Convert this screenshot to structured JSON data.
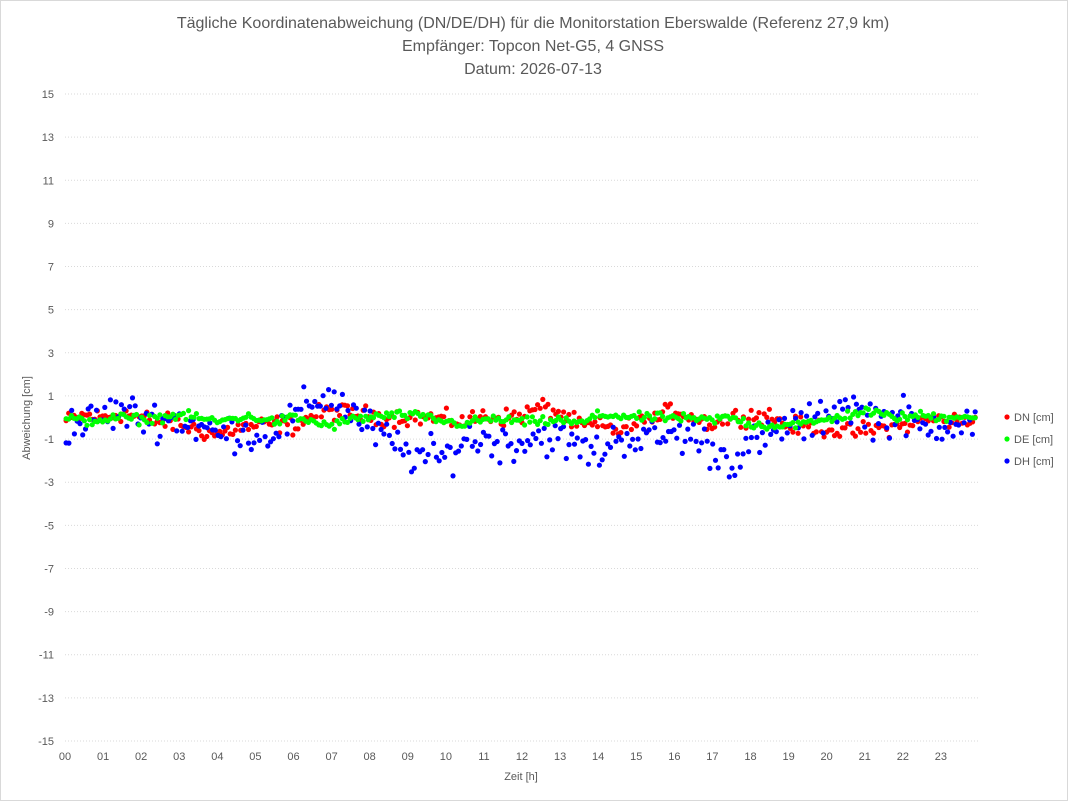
{
  "chart_data": {
    "type": "scatter",
    "title": [
      "Tägliche Koordinatenabweichung (DN/DE/DH) für die Monitorstation Eberswalde (Referenz 27,9 km)",
      "Empfänger: Topcon Net-G5, 4 GNSS",
      "Datum: 2026-07-13"
    ],
    "xlabel": "Zeit [h]",
    "ylabel": "Abweichung [cm]",
    "xlim": [
      0,
      24
    ],
    "ylim": [
      -15,
      15
    ],
    "x_ticks": [
      "00",
      "01",
      "02",
      "03",
      "04",
      "05",
      "06",
      "07",
      "08",
      "09",
      "10",
      "11",
      "12",
      "13",
      "14",
      "15",
      "16",
      "17",
      "18",
      "19",
      "20",
      "21",
      "22",
      "23"
    ],
    "y_ticks": [
      15,
      13,
      11,
      9,
      7,
      5,
      3,
      1,
      -1,
      -3,
      -5,
      -7,
      -9,
      -11,
      -13,
      -15
    ],
    "y_tick_labels": [
      "15",
      "13",
      "11",
      "9",
      "7",
      "5",
      "3",
      "1",
      "-1",
      "-3",
      "-5",
      "-7",
      "-9",
      "-11",
      "-13",
      "-15"
    ],
    "grid": "horizontal-dotted",
    "legend_position": "right",
    "colors": {
      "DN": "#ff0000",
      "DE": "#00ff00",
      "DH": "#0000ff",
      "grid": "#d9d9d9",
      "text": "#595959"
    },
    "series": [
      {
        "name": "DN [cm]",
        "color": "#ff0000",
        "knots": [
          [
            0.0,
            -0.2
          ],
          [
            0.5,
            0.1
          ],
          [
            1.0,
            0.0
          ],
          [
            1.5,
            0.2
          ],
          [
            2.0,
            0.0
          ],
          [
            2.5,
            -0.2
          ],
          [
            3.0,
            -0.3
          ],
          [
            3.5,
            -0.6
          ],
          [
            4.0,
            -0.8
          ],
          [
            4.5,
            -0.5
          ],
          [
            5.0,
            -0.4
          ],
          [
            5.5,
            -0.3
          ],
          [
            6.0,
            -0.4
          ],
          [
            6.5,
            0.1
          ],
          [
            7.0,
            0.3
          ],
          [
            7.5,
            0.2
          ],
          [
            8.0,
            0.1
          ],
          [
            8.5,
            0.0
          ],
          [
            9.0,
            0.0
          ],
          [
            9.5,
            0.0
          ],
          [
            10.0,
            -0.1
          ],
          [
            10.5,
            -0.2
          ],
          [
            11.0,
            0.1
          ],
          [
            11.5,
            0.0
          ],
          [
            12.0,
            0.1
          ],
          [
            12.5,
            0.5
          ],
          [
            13.0,
            0.2
          ],
          [
            13.5,
            -0.4
          ],
          [
            14.0,
            -0.4
          ],
          [
            14.5,
            -0.6
          ],
          [
            15.0,
            -0.3
          ],
          [
            15.5,
            -0.1
          ],
          [
            16.0,
            0.4
          ],
          [
            16.5,
            0.0
          ],
          [
            17.0,
            -0.3
          ],
          [
            17.5,
            0.0
          ],
          [
            18.0,
            0.1
          ],
          [
            18.5,
            0.1
          ],
          [
            19.0,
            -0.4
          ],
          [
            19.5,
            -0.4
          ],
          [
            20.0,
            -0.5
          ],
          [
            20.5,
            -0.7
          ],
          [
            21.0,
            -0.6
          ],
          [
            21.5,
            -0.5
          ],
          [
            22.0,
            -0.4
          ],
          [
            22.5,
            -0.1
          ],
          [
            23.0,
            -0.1
          ],
          [
            23.5,
            -0.2
          ],
          [
            23.9,
            -0.1
          ]
        ]
      },
      {
        "name": "DE [cm]",
        "color": "#00ff00",
        "knots": [
          [
            0.0,
            0.0
          ],
          [
            0.5,
            -0.2
          ],
          [
            1.0,
            -0.1
          ],
          [
            1.5,
            0.0
          ],
          [
            2.0,
            -0.1
          ],
          [
            2.5,
            0.0
          ],
          [
            3.0,
            0.1
          ],
          [
            3.5,
            0.0
          ],
          [
            4.0,
            -0.2
          ],
          [
            4.5,
            0.0
          ],
          [
            5.0,
            0.0
          ],
          [
            5.5,
            -0.2
          ],
          [
            6.0,
            0.0
          ],
          [
            6.5,
            -0.2
          ],
          [
            7.0,
            -0.4
          ],
          [
            7.5,
            -0.1
          ],
          [
            8.0,
            0.0
          ],
          [
            8.5,
            0.1
          ],
          [
            9.0,
            0.1
          ],
          [
            9.5,
            0.0
          ],
          [
            10.0,
            -0.2
          ],
          [
            10.5,
            -0.3
          ],
          [
            11.0,
            -0.1
          ],
          [
            11.5,
            -0.1
          ],
          [
            12.0,
            -0.2
          ],
          [
            12.5,
            -0.2
          ],
          [
            13.0,
            -0.1
          ],
          [
            13.5,
            -0.3
          ],
          [
            14.0,
            0.1
          ],
          [
            14.5,
            0.1
          ],
          [
            15.0,
            0.0
          ],
          [
            15.5,
            0.0
          ],
          [
            16.0,
            0.0
          ],
          [
            16.5,
            -0.1
          ],
          [
            17.0,
            -0.1
          ],
          [
            17.5,
            0.0
          ],
          [
            18.0,
            -0.3
          ],
          [
            18.5,
            -0.4
          ],
          [
            19.0,
            -0.3
          ],
          [
            19.5,
            -0.3
          ],
          [
            20.0,
            -0.1
          ],
          [
            20.5,
            0.1
          ],
          [
            21.0,
            0.3
          ],
          [
            21.5,
            0.1
          ],
          [
            22.0,
            0.0
          ],
          [
            22.5,
            0.1
          ],
          [
            23.0,
            0.0
          ],
          [
            23.5,
            0.1
          ],
          [
            23.9,
            0.0
          ]
        ]
      },
      {
        "name": "DH [cm]",
        "color": "#0000ff",
        "knots": [
          [
            0.0,
            -0.4
          ],
          [
            0.5,
            -0.3
          ],
          [
            1.0,
            0.1
          ],
          [
            1.5,
            0.3
          ],
          [
            2.0,
            0.0
          ],
          [
            2.5,
            -0.1
          ],
          [
            3.0,
            -0.1
          ],
          [
            3.5,
            -0.4
          ],
          [
            4.0,
            -0.8
          ],
          [
            4.5,
            -0.6
          ],
          [
            5.0,
            -0.8
          ],
          [
            5.5,
            -0.6
          ],
          [
            6.0,
            -0.1
          ],
          [
            6.5,
            0.8
          ],
          [
            7.0,
            1.0
          ],
          [
            7.5,
            0.3
          ],
          [
            8.0,
            -0.5
          ],
          [
            8.5,
            -1.1
          ],
          [
            9.0,
            -1.7
          ],
          [
            9.5,
            -1.8
          ],
          [
            10.0,
            -1.9
          ],
          [
            10.5,
            -1.0
          ],
          [
            11.0,
            -1.0
          ],
          [
            11.5,
            -1.2
          ],
          [
            12.0,
            -1.1
          ],
          [
            12.5,
            -0.8
          ],
          [
            13.0,
            -1.1
          ],
          [
            13.5,
            -1.4
          ],
          [
            14.0,
            -1.7
          ],
          [
            14.5,
            -0.9
          ],
          [
            15.0,
            -0.9
          ],
          [
            15.5,
            -1.0
          ],
          [
            16.0,
            -0.8
          ],
          [
            16.5,
            -0.9
          ],
          [
            17.0,
            -1.5
          ],
          [
            17.5,
            -2.0
          ],
          [
            18.0,
            -1.3
          ],
          [
            18.5,
            -1.0
          ],
          [
            19.0,
            -0.2
          ],
          [
            19.5,
            -0.4
          ],
          [
            20.0,
            0.2
          ],
          [
            20.5,
            0.7
          ],
          [
            21.0,
            0.1
          ],
          [
            21.5,
            -0.1
          ],
          [
            22.0,
            0.1
          ],
          [
            22.5,
            -0.6
          ],
          [
            23.0,
            -0.2
          ],
          [
            23.5,
            -0.2
          ],
          [
            23.9,
            -0.3
          ]
        ]
      }
    ]
  }
}
